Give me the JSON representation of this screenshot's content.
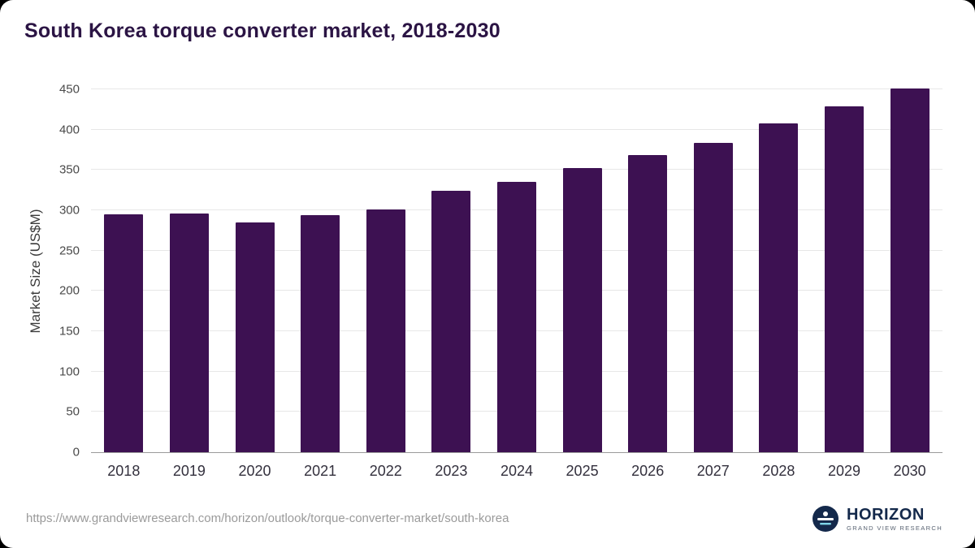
{
  "title": "South Korea torque converter market, 2018-2030",
  "footer": {
    "source_url": "https://www.grandviewresearch.com/horizon/outlook/torque-converter-market/south-korea",
    "brand_name": "HORIZON",
    "brand_subtitle": "GRAND VIEW RESEARCH"
  },
  "colors": {
    "bar": "#3d1152",
    "title": "#2b1444",
    "gridline": "#e7e7e7",
    "logo_navy": "#14294b"
  },
  "chart_data": {
    "type": "bar",
    "title": "South Korea torque converter market, 2018-2030",
    "categories": [
      "2018",
      "2019",
      "2020",
      "2021",
      "2022",
      "2023",
      "2024",
      "2025",
      "2026",
      "2027",
      "2028",
      "2029",
      "2030"
    ],
    "values": [
      295,
      296,
      285,
      294,
      301,
      324,
      335,
      352,
      368,
      384,
      408,
      429,
      451
    ],
    "xlabel": "",
    "ylabel": "Market Size (US$M)",
    "ylim": [
      0,
      450
    ],
    "ytick_step": 50,
    "grid": true,
    "legend": "none",
    "bar_color": "#3d1152"
  }
}
